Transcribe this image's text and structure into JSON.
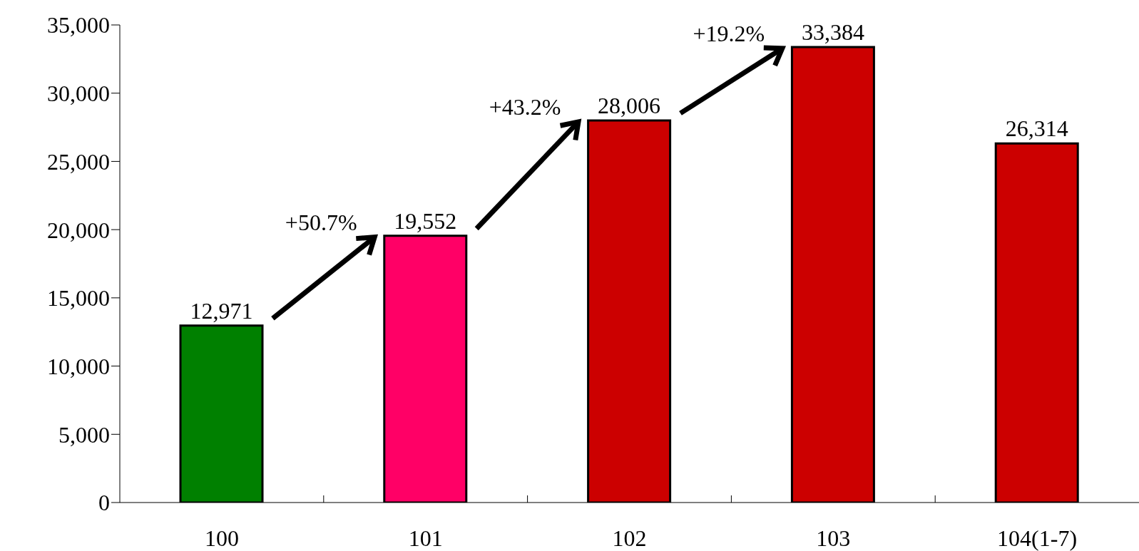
{
  "chart_data": {
    "type": "bar",
    "categories": [
      "100",
      "101",
      "102",
      "103",
      "104(1-7)"
    ],
    "values": [
      12971,
      19552,
      28006,
      33384,
      26314
    ],
    "colors": [
      "#008000",
      "#ff0066",
      "#cc0000",
      "#cc0000",
      "#cc0000"
    ],
    "value_labels": [
      "12,971",
      "19,552",
      "28,006",
      "33,384",
      "26,314"
    ],
    "ylim": [
      0,
      35000
    ],
    "yticks": [
      {
        "value": 0,
        "label": "0"
      },
      {
        "value": 5000,
        "label": "5,000"
      },
      {
        "value": 10000,
        "label": "10,000"
      },
      {
        "value": 15000,
        "label": "15,000"
      },
      {
        "value": 20000,
        "label": "20,000"
      },
      {
        "value": 25000,
        "label": "25,000"
      },
      {
        "value": 30000,
        "label": "30,000"
      },
      {
        "value": 35000,
        "label": "35,000"
      }
    ],
    "annotations": [
      "+50.7%",
      "+43.2%",
      "+19.2%"
    ],
    "grid": false,
    "legend": false
  }
}
